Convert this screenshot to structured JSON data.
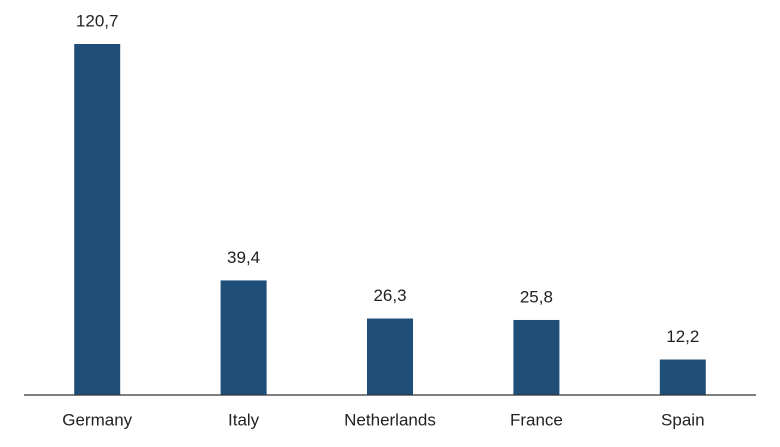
{
  "chart_data": {
    "type": "bar",
    "categories": [
      "Germany",
      "Italy",
      "Netherlands",
      "France",
      "Spain"
    ],
    "values": [
      120.7,
      39.4,
      26.3,
      25.8,
      12.2
    ],
    "value_labels": [
      "120,7",
      "39,4",
      "26,3",
      "25,8",
      "12,2"
    ],
    "color": "#1f4e79"
  }
}
